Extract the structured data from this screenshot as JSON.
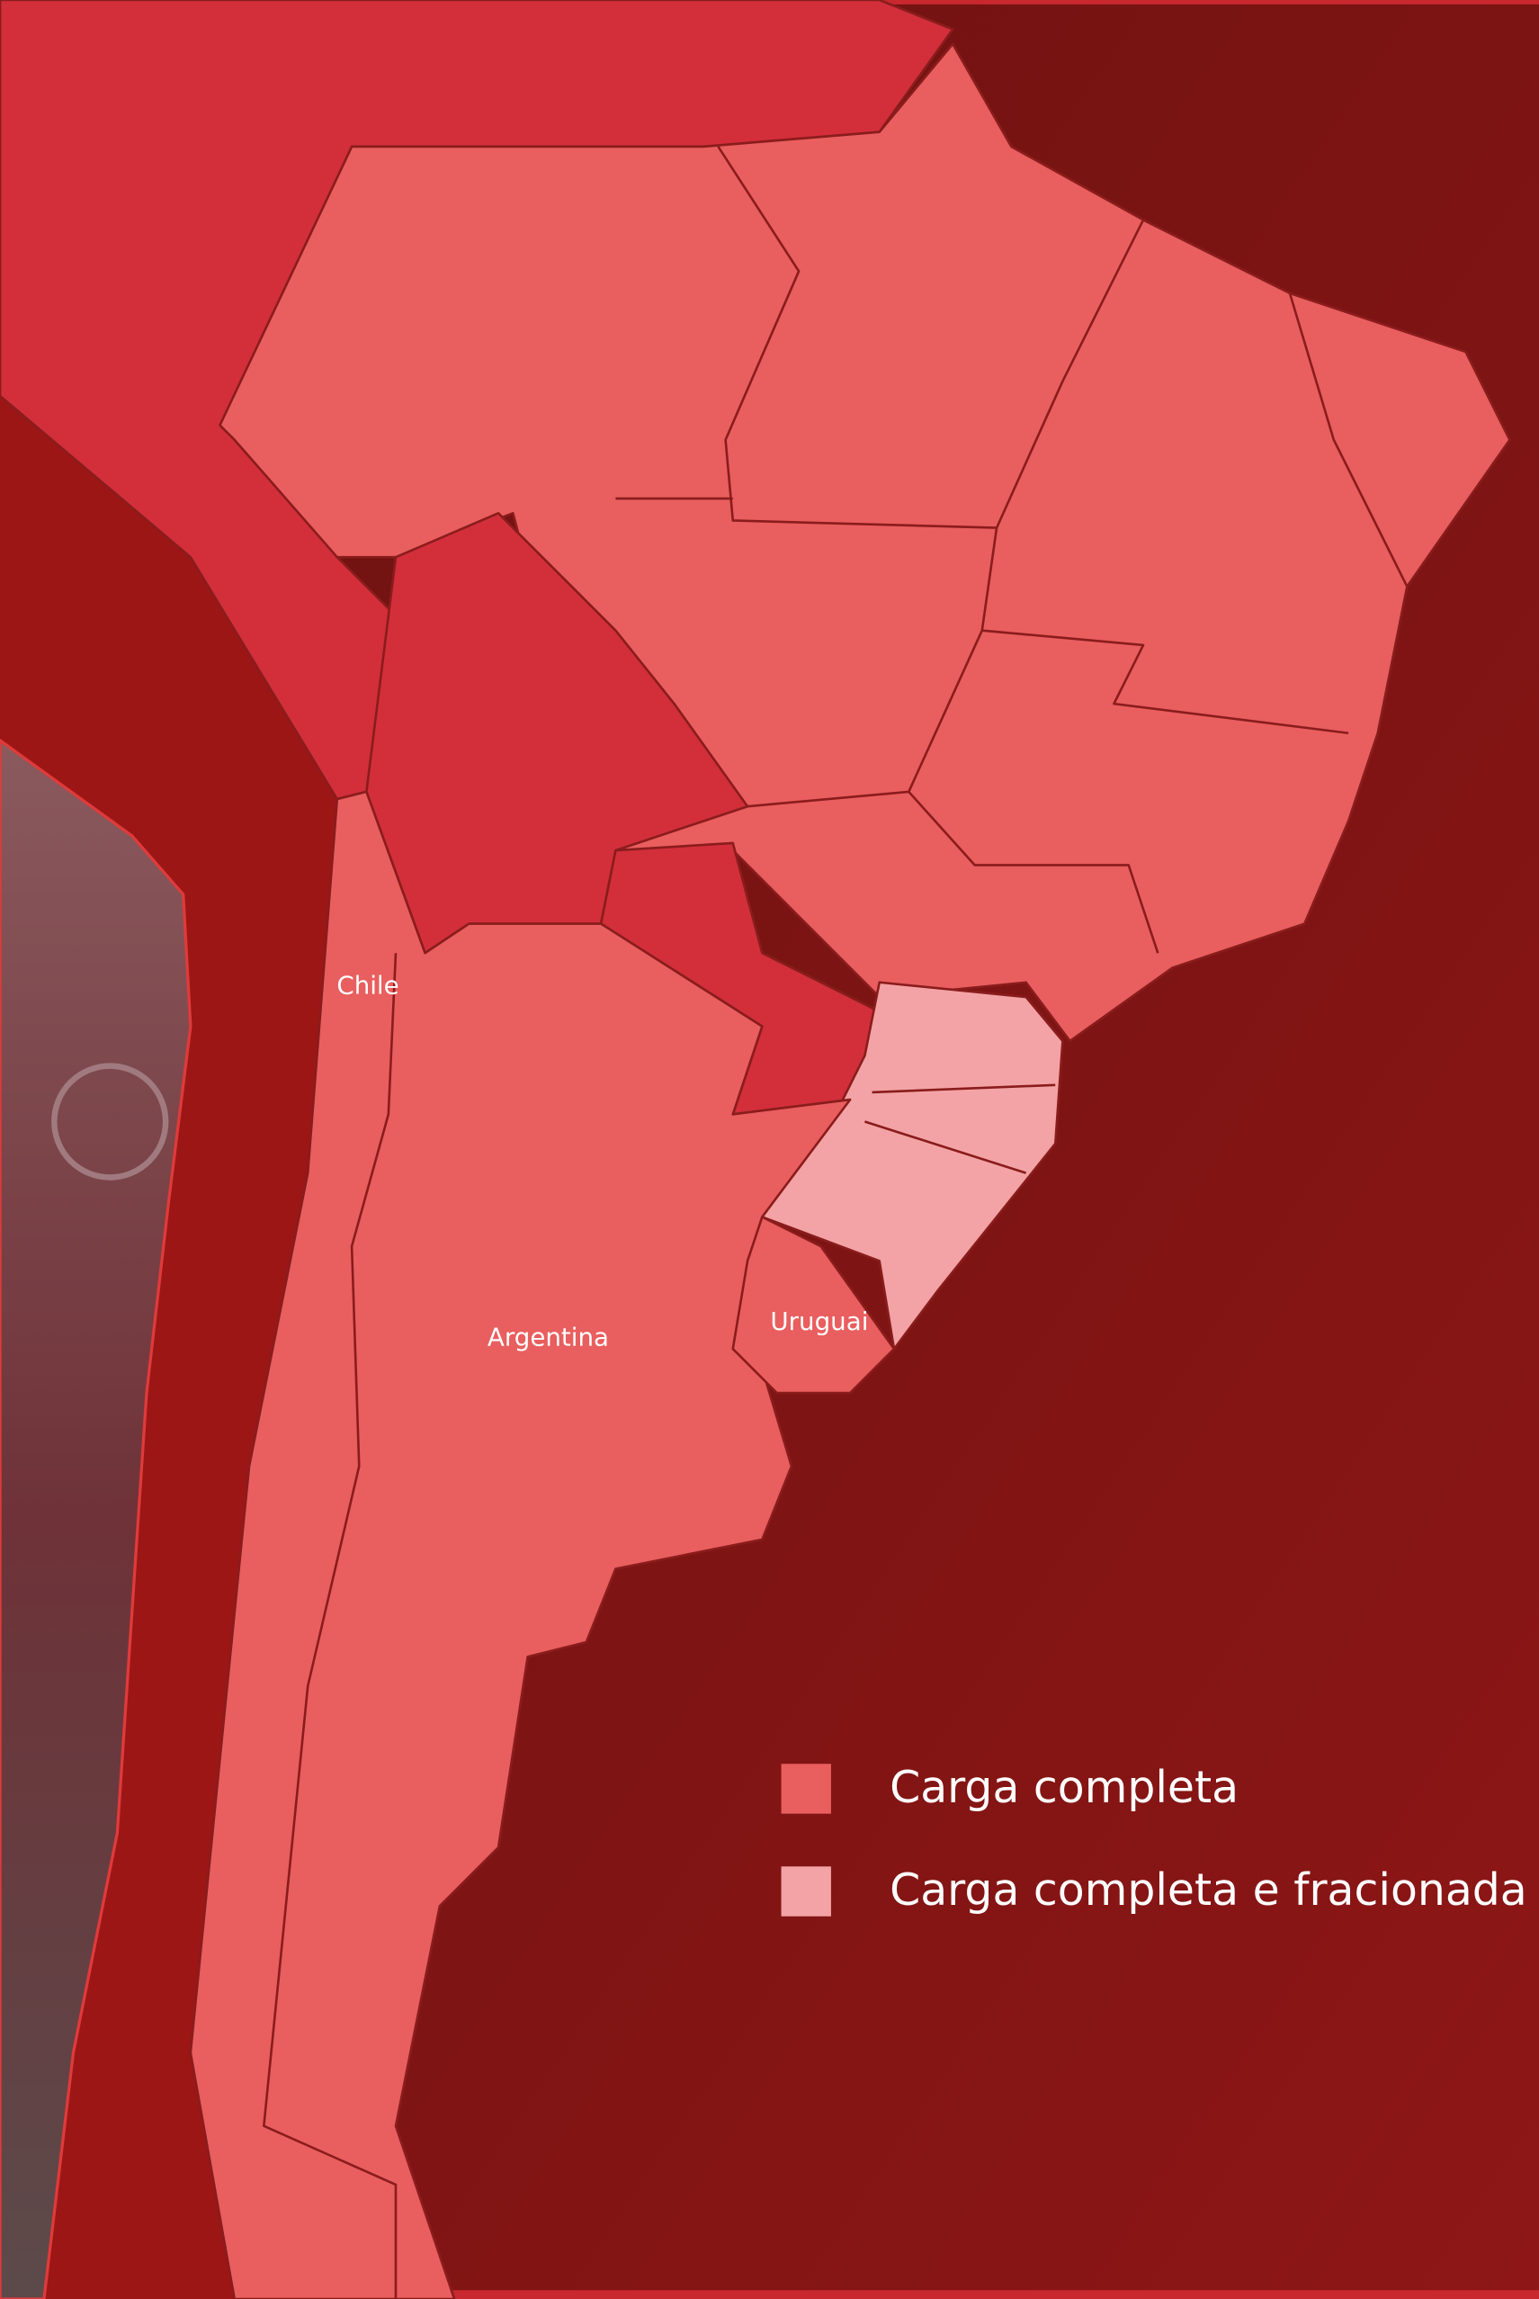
{
  "map": {
    "labels": [
      {
        "text": "Chile"
      },
      {
        "text": "Argentina"
      },
      {
        "text": "Uruguai"
      }
    ],
    "legend": [
      {
        "label": "Carga completa",
        "color": "#e95e5e"
      },
      {
        "label": "Carga completa e fracionada",
        "color": "#f3a3a6"
      }
    ]
  }
}
